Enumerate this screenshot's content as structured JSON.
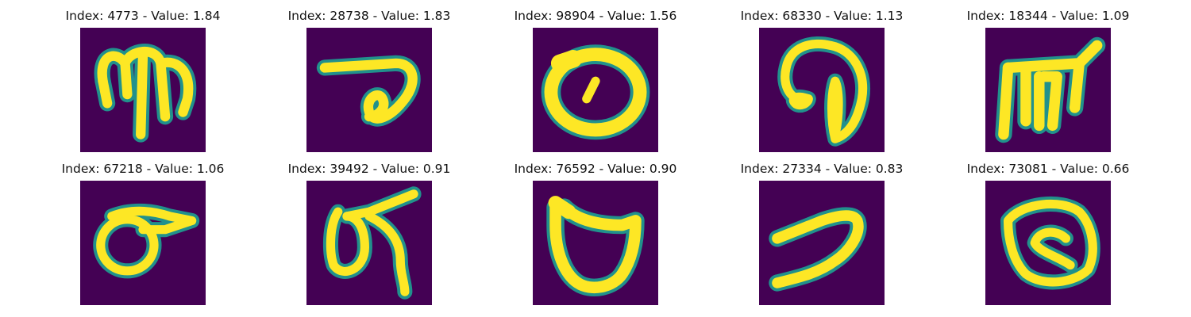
{
  "colors": {
    "background": "#440154",
    "stroke_edge": "#21918c",
    "stroke_mid": "#5ec962",
    "stroke_core": "#fde725"
  },
  "panels": [
    {
      "title": "Index: 4773 - Value: 1.84",
      "glyph": "glyph-4773"
    },
    {
      "title": "Index: 28738 - Value: 1.83",
      "glyph": "glyph-28738"
    },
    {
      "title": "Index: 98904 - Value: 1.56",
      "glyph": "glyph-98904"
    },
    {
      "title": "Index: 68330 - Value: 1.13",
      "glyph": "glyph-68330"
    },
    {
      "title": "Index: 18344 - Value: 1.09",
      "glyph": "glyph-18344"
    },
    {
      "title": "Index: 67218 - Value: 1.06",
      "glyph": "glyph-67218"
    },
    {
      "title": "Index: 39492 - Value: 0.91",
      "glyph": "glyph-39492"
    },
    {
      "title": "Index: 76592 - Value: 0.90",
      "glyph": "glyph-76592"
    },
    {
      "title": "Index: 27334 - Value: 0.83",
      "glyph": "glyph-27334"
    },
    {
      "title": "Index: 73081 - Value: 0.66",
      "glyph": "glyph-73081"
    }
  ]
}
